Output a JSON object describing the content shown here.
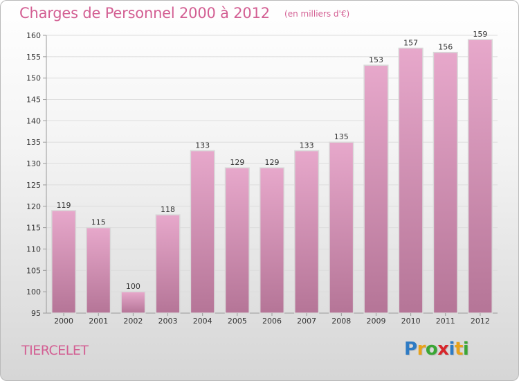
{
  "header": {
    "title": "Charges de Personnel 2000 à 2012",
    "subtitle": "(en milliers d'€)"
  },
  "footer": {
    "commune": "TIERCELET",
    "logo_text": "Proxiti",
    "logo_letters": [
      {
        "char": "P",
        "color": "#2e7bc4"
      },
      {
        "char": "r",
        "color": "#e8a21a"
      },
      {
        "char": "o",
        "color": "#3aa635"
      },
      {
        "char": "x",
        "color": "#d7262b"
      },
      {
        "char": "i",
        "color": "#2e7bc4"
      },
      {
        "char": "t",
        "color": "#e8a21a"
      },
      {
        "char": "i",
        "color": "#3aa635"
      }
    ]
  },
  "chart_data": {
    "type": "bar",
    "title": "Charges de Personnel 2000 à 2012",
    "subtitle": "(en milliers d'€)",
    "categories": [
      "2000",
      "2001",
      "2002",
      "2003",
      "2004",
      "2005",
      "2006",
      "2007",
      "2008",
      "2009",
      "2010",
      "2011",
      "2012"
    ],
    "values": [
      119,
      115,
      100,
      118,
      133,
      129,
      129,
      133,
      135,
      153,
      157,
      156,
      159
    ],
    "value_labels": [
      "119",
      "115",
      "100",
      "118",
      "133",
      "129",
      "129",
      "133",
      "135",
      "153",
      "157",
      "156",
      "159"
    ],
    "ylim": [
      95,
      160
    ],
    "yticks": [
      95,
      100,
      105,
      110,
      115,
      120,
      125,
      130,
      135,
      140,
      145,
      150,
      155,
      160
    ],
    "xlabel": "",
    "ylabel": "",
    "grid": true,
    "legend": "none",
    "colors": {
      "bar_top": "#e7a8cb",
      "bar_bottom": "#b57597",
      "bar_border": "#d9d9d9",
      "grid": "#dcdcdc",
      "accent": "#d35f93"
    }
  }
}
